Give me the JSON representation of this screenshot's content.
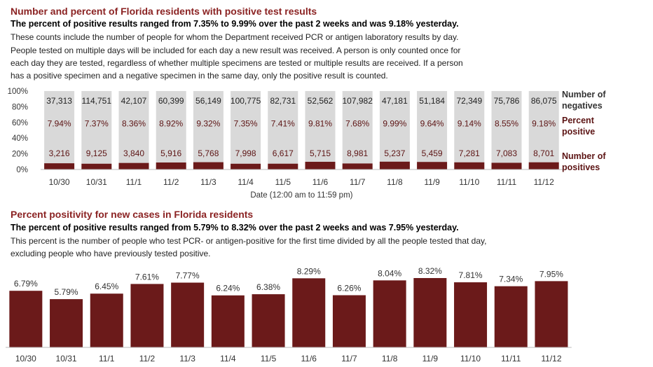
{
  "section1": {
    "title": "Number and percent of Florida residents with positive test results",
    "subtitle": "The percent of positive results ranged from 7.35% to 9.99% over the past 2 weeks and was 9.18% yesterday.",
    "desc": [
      "These counts include the number of people for whom the Department received PCR or antigen laboratory results by day.",
      "People tested on multiple days will be included for each day a new result was received. A person is only counted once for",
      "each day they are tested, regardless of whether multiple specimens are tested or multiple results are received. If a person",
      "has a positive specimen and a negative specimen in the same day, only the positive result is counted."
    ]
  },
  "section2": {
    "title": "Percent positivity for new cases in Florida residents",
    "subtitle": "The percent of positive results ranged from 5.79% to 8.32% over the past 2 weeks and was 7.95% yesterday.",
    "desc": [
      "This percent is the number of people who test PCR- or antigen-positive for the first time divided by all the people tested that day,",
      "excluding people who have previously tested positive."
    ]
  },
  "colors": {
    "positive": "#6b1a1a",
    "negative": "#d9d9d9",
    "title": "#8b2323",
    "legend": "#5c1414"
  },
  "chart_data": [
    {
      "type": "bar",
      "stacked": true,
      "categories": [
        "10/30",
        "10/31",
        "11/1",
        "11/2",
        "11/3",
        "11/4",
        "11/5",
        "11/6",
        "11/7",
        "11/8",
        "11/9",
        "11/10",
        "11/11",
        "11/12"
      ],
      "negatives": [
        37313,
        114751,
        42107,
        60399,
        56149,
        100775,
        82731,
        52562,
        107982,
        47181,
        51184,
        72349,
        75786,
        86075
      ],
      "negatives_labels": [
        "37,313",
        "114,751",
        "42,107",
        "60,399",
        "56,149",
        "100,775",
        "82,731",
        "52,562",
        "107,982",
        "47,181",
        "51,184",
        "72,349",
        "75,786",
        "86,075"
      ],
      "percent_positive": [
        7.94,
        7.37,
        8.36,
        8.92,
        9.32,
        7.35,
        7.41,
        9.81,
        7.68,
        9.99,
        9.64,
        9.14,
        8.55,
        9.18
      ],
      "percent_labels": [
        "7.94%",
        "7.37%",
        "8.36%",
        "8.92%",
        "9.32%",
        "7.35%",
        "7.41%",
        "9.81%",
        "7.68%",
        "9.99%",
        "9.64%",
        "9.14%",
        "8.55%",
        "9.18%"
      ],
      "positives": [
        3216,
        9125,
        3840,
        5916,
        5768,
        7998,
        6617,
        5715,
        8981,
        5237,
        5459,
        7281,
        7083,
        8701
      ],
      "positives_labels": [
        "3,216",
        "9,125",
        "3,840",
        "5,916",
        "5,768",
        "7,998",
        "6,617",
        "5,715",
        "8,981",
        "5,237",
        "5,459",
        "7,281",
        "7,083",
        "8,701"
      ],
      "y_ticks": [
        "100%",
        "80%",
        "60%",
        "40%",
        "20%",
        "0%"
      ],
      "ylim": [
        0,
        100
      ],
      "xlabel": "Date (12:00 am to 11:59 pm)",
      "legend": {
        "negatives": [
          "Number of",
          "negatives"
        ],
        "percent": [
          "Percent",
          "positive"
        ],
        "positives": [
          "Number of",
          "positives"
        ]
      }
    },
    {
      "type": "bar",
      "categories": [
        "10/30",
        "10/31",
        "11/1",
        "11/2",
        "11/3",
        "11/4",
        "11/5",
        "11/6",
        "11/7",
        "11/8",
        "11/9",
        "11/10",
        "11/11",
        "11/12"
      ],
      "values": [
        6.79,
        5.79,
        6.45,
        7.61,
        7.77,
        6.24,
        6.38,
        8.29,
        6.26,
        8.04,
        8.32,
        7.81,
        7.34,
        7.95
      ],
      "value_labels": [
        "6.79%",
        "5.79%",
        "6.45%",
        "7.61%",
        "7.77%",
        "6.24%",
        "6.38%",
        "8.29%",
        "6.26%",
        "8.04%",
        "8.32%",
        "7.81%",
        "7.34%",
        "7.95%"
      ]
    }
  ]
}
